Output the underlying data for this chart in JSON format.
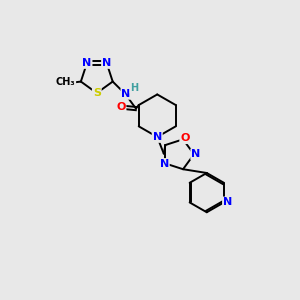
{
  "bg_color": "#e8e8e8",
  "N_color": "#0000ff",
  "O_color": "#ff0000",
  "S_color": "#cccc00",
  "C_color": "#000000",
  "H_color": "#40a0a0",
  "lw": 1.4,
  "fs": 8.0,
  "fs_small": 7.0,
  "xlim": [
    0,
    10
  ],
  "ylim": [
    0,
    10
  ]
}
